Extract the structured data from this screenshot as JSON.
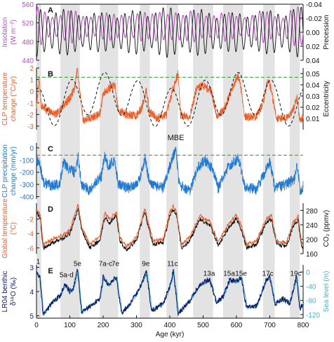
{
  "colors": {
    "insolation": "#b84fbf",
    "precession": "#111111",
    "temperature": "#e8602c",
    "eccentricity": "#111111",
    "precipitation": "#1f78d1",
    "global_temp": "#e8602c",
    "co2": "#111111",
    "lr04": "#0b1a6b",
    "sea_level": "#3cb4c8",
    "band": "#e3e3e3",
    "threshold": "#2a9a2a",
    "axis": "#111111"
  },
  "x_axis": {
    "label": "Age (kyr)",
    "ticks": [
      "0",
      "100",
      "200",
      "300",
      "400",
      "500",
      "600",
      "700",
      "800"
    ],
    "range": [
      0,
      800
    ]
  },
  "interglacial_bands_kyr": [
    [
      0,
      14
    ],
    [
      72,
      130
    ],
    [
      190,
      245
    ],
    [
      310,
      340
    ],
    [
      390,
      425
    ],
    [
      470,
      530
    ],
    [
      560,
      620
    ],
    [
      680,
      715
    ],
    [
      760,
      790
    ]
  ],
  "chart_data": [
    {
      "panel": "A",
      "type": "line",
      "left_axis": {
        "label_lines": [
          "Insolation",
          "(W m⁻²)"
        ],
        "ticks": [
          "440",
          "480",
          "520",
          "560"
        ],
        "range": [
          440,
          560
        ]
      },
      "right_axis": {
        "label": "Precession",
        "ticks": [
          "-0.04",
          "-0.02",
          "0.00",
          "0.02",
          "0.04"
        ],
        "range": [
          -0.04,
          0.04
        ],
        "inverted": true
      },
      "series": [
        {
          "name": "Insolation",
          "axis": "left",
          "color_key": "insolation",
          "amplitude_note": "oscillates ~460-560 with ~23 kyr period"
        },
        {
          "name": "Precession",
          "axis": "right",
          "color_key": "precession"
        }
      ]
    },
    {
      "panel": "B",
      "type": "line",
      "left_axis": {
        "label_lines": [
          "CLP temperature",
          "change (°C/yr)"
        ],
        "ticks": [
          "-3",
          "-2",
          "-1",
          "0",
          "1",
          "2"
        ],
        "range": [
          -3.3,
          2.0
        ]
      },
      "right_axis": {
        "label": "Eccentricity",
        "ticks": [
          "0.01",
          "0.02",
          "0.03",
          "0.04",
          "0.05"
        ],
        "range": [
          0.0,
          0.055
        ]
      },
      "threshold": 1.2,
      "series": [
        {
          "name": "CLP temperature change",
          "axis": "left",
          "color_key": "temperature"
        },
        {
          "name": "Eccentricity",
          "axis": "right",
          "color_key": "eccentricity",
          "style": "dashed"
        }
      ]
    },
    {
      "panel": "C",
      "type": "line",
      "left_axis": {
        "label_lines": [
          "CLP precipitation",
          "change (mm/yr)"
        ],
        "ticks": [
          "-400",
          "-300",
          "-200",
          "-100",
          "0"
        ],
        "range": [
          -420,
          40
        ]
      },
      "threshold": -60,
      "annotation": "MBE",
      "series": [
        {
          "name": "CLP precipitation change",
          "axis": "left",
          "color_key": "precipitation"
        }
      ]
    },
    {
      "panel": "D",
      "type": "line",
      "left_axis": {
        "label_lines": [
          "Global temperature",
          "(°C)"
        ],
        "ticks": [
          "-6",
          "-4",
          "-2"
        ],
        "range": [
          -6.8,
          0.2
        ]
      },
      "right_axis": {
        "label": "CO₂ (ppmv)",
        "ticks": [
          "160",
          "200",
          "240",
          "280"
        ],
        "range": [
          160,
          300
        ]
      },
      "series": [
        {
          "name": "Global temperature",
          "axis": "left",
          "color_key": "global_temp"
        },
        {
          "name": "CO2",
          "axis": "right",
          "color_key": "co2"
        }
      ]
    },
    {
      "panel": "E",
      "type": "line",
      "left_axis": {
        "label_lines": [
          "LR04 benthic",
          "δ¹⁸O (‰)"
        ],
        "ticks": [
          "3",
          "4",
          "5"
        ],
        "range": [
          5.1,
          2.9
        ],
        "inverted": true
      },
      "right_axis": {
        "label": "Sea level (m)",
        "ticks": [
          "0",
          "-40",
          "-80",
          "-120"
        ],
        "range": [
          -130,
          20
        ]
      },
      "mis_labels": [
        {
          "text": "1",
          "x": 5,
          "y": 2.85
        },
        {
          "text": "5e",
          "x": 123,
          "y": 2.95
        },
        {
          "text": "5a-d",
          "x": 90,
          "y": 3.4
        },
        {
          "text": "7a-c",
          "x": 207,
          "y": 2.95
        },
        {
          "text": "7e",
          "x": 237,
          "y": 2.95
        },
        {
          "text": "9e",
          "x": 328,
          "y": 2.95
        },
        {
          "text": "11c",
          "x": 408,
          "y": 2.95
        },
        {
          "text": "13a",
          "x": 518,
          "y": 3.35
        },
        {
          "text": "15a",
          "x": 578,
          "y": 3.35
        },
        {
          "text": "15e",
          "x": 614,
          "y": 3.35
        },
        {
          "text": "17c",
          "x": 694,
          "y": 3.35
        },
        {
          "text": "19c",
          "x": 778,
          "y": 3.35
        }
      ],
      "series": [
        {
          "name": "LR04 benthic δ¹⁸O",
          "axis": "left",
          "color_key": "lr04"
        },
        {
          "name": "Sea level",
          "axis": "right",
          "color_key": "sea_level"
        }
      ]
    }
  ]
}
